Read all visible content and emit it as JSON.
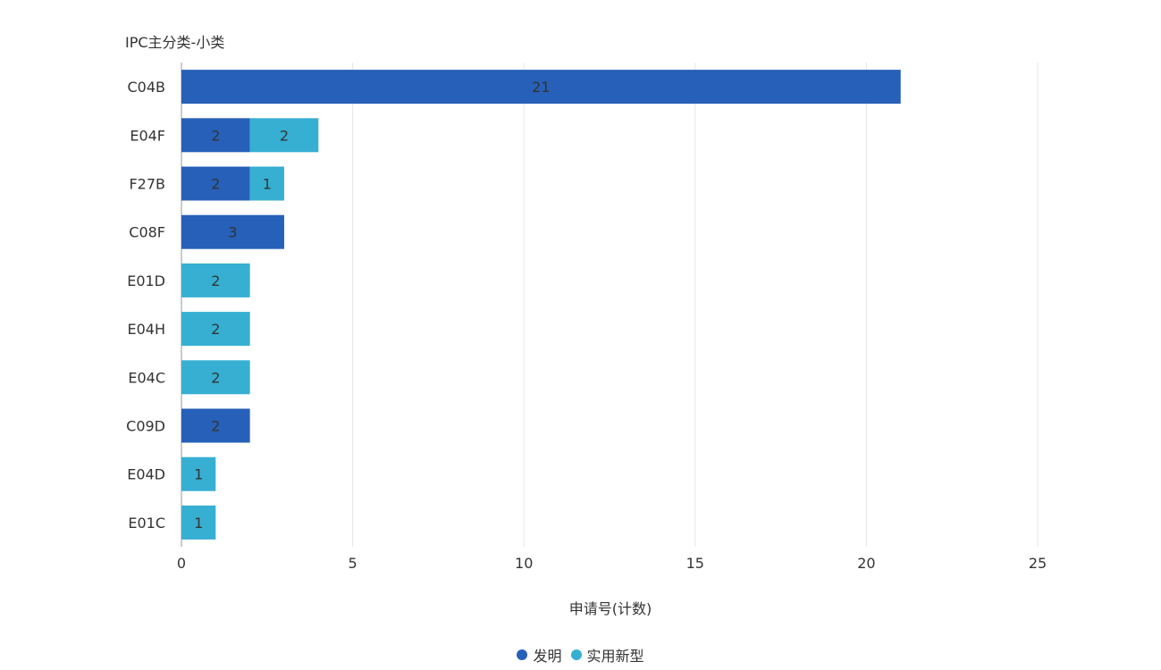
{
  "chart_data": {
    "type": "bar",
    "orientation": "horizontal",
    "stacked": true,
    "ylabel": "IPC主分类-小类",
    "xlabel": "申请号(计数)",
    "categories": [
      "C04B",
      "E04F",
      "F27B",
      "C08F",
      "E01D",
      "E04H",
      "E04C",
      "C09D",
      "E04D",
      "E01C"
    ],
    "series": [
      {
        "name": "发明",
        "color": "#2660b8",
        "values": [
          21,
          2,
          2,
          3,
          0,
          0,
          0,
          2,
          0,
          0
        ]
      },
      {
        "name": "实用新型",
        "color": "#36afd2",
        "values": [
          0,
          2,
          1,
          0,
          2,
          2,
          2,
          0,
          1,
          1
        ]
      }
    ],
    "xlim": [
      0,
      25
    ],
    "xticks": [
      0,
      5,
      10,
      15,
      20,
      25
    ],
    "grid": true,
    "legend_position": "bottom-center"
  }
}
